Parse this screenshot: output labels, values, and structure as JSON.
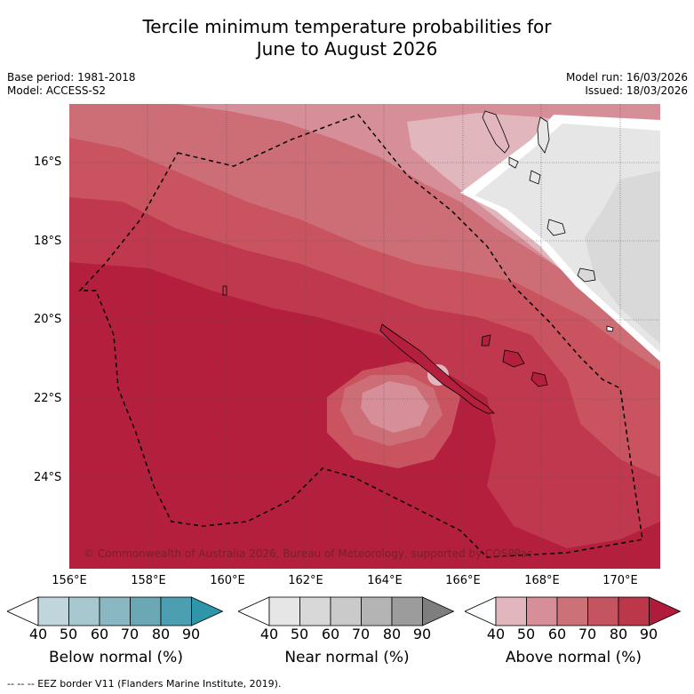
{
  "header": {
    "title_line1": "Tercile minimum temperature probabilities for",
    "title_line2": "June to August 2026",
    "base_period": "Base period: 1981-2018",
    "model": "Model: ACCESS-S2",
    "model_run": "Model run: 16/03/2026",
    "issued": "Issued: 18/03/2026"
  },
  "map": {
    "lat_labels": [
      "16°S",
      "18°S",
      "20°S",
      "22°S",
      "24°S"
    ],
    "lon_labels": [
      "156°E",
      "158°E",
      "160°E",
      "162°E",
      "164°E",
      "166°E",
      "168°E",
      "170°E"
    ],
    "copyright": "© Commonwealth of Australia 2026, Bureau of Meteorology, supported by COSPPac"
  },
  "legend": {
    "below": {
      "title": "Below normal (%)",
      "ticks": [
        "40",
        "50",
        "60",
        "70",
        "80",
        "90"
      ],
      "colors": [
        "#c1d6dc",
        "#a6c8ce",
        "#89b8c2",
        "#6aa8b6",
        "#4b9fb0",
        "#2e96a8"
      ]
    },
    "near": {
      "title": "Near normal (%)",
      "ticks": [
        "40",
        "50",
        "60",
        "70",
        "80",
        "90"
      ],
      "colors": [
        "#e6e6e6",
        "#d8d8d8",
        "#cacaca",
        "#b4b4b4",
        "#9c9c9c",
        "#7e7e7e"
      ]
    },
    "above": {
      "title": "Above normal (%)",
      "ticks": [
        "40",
        "50",
        "60",
        "70",
        "80",
        "90"
      ],
      "colors": [
        "#e2b6bd",
        "#d68f98",
        "#cc7178",
        "#c45460",
        "#bb3749",
        "#ae1b3b"
      ]
    }
  },
  "footnote": "--  --  -- EEZ border V11 (Flanders Marine Institute, 2019)."
}
